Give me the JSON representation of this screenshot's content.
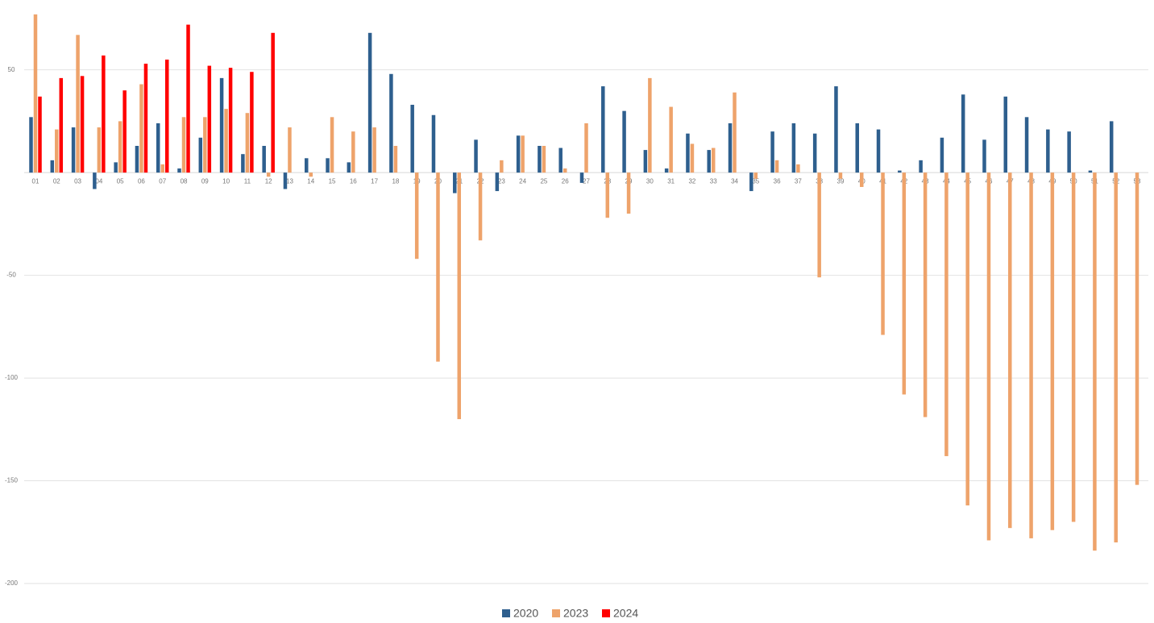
{
  "chart_data": {
    "type": "bar",
    "categories": [
      "01",
      "02",
      "03",
      "04",
      "05",
      "06",
      "07",
      "08",
      "09",
      "10",
      "11",
      "12",
      "13",
      "14",
      "15",
      "16",
      "17",
      "18",
      "19",
      "20",
      "21",
      "22",
      "23",
      "24",
      "25",
      "26",
      "27",
      "28",
      "29",
      "30",
      "31",
      "32",
      "33",
      "34",
      "35",
      "36",
      "37",
      "38",
      "39",
      "40",
      "41",
      "42",
      "43",
      "44",
      "45",
      "46",
      "47",
      "48",
      "49",
      "50",
      "51",
      "52",
      "53"
    ],
    "series": [
      {
        "name": "2020",
        "color": "#2e5f8e",
        "values": [
          27,
          6,
          22,
          -8,
          5,
          13,
          24,
          2,
          17,
          46,
          9,
          13,
          -8,
          7,
          7,
          5,
          68,
          48,
          33,
          28,
          -10,
          16,
          -9,
          18,
          13,
          12,
          -5,
          42,
          30,
          11,
          2,
          19,
          11,
          24,
          -9,
          20,
          24,
          19,
          42,
          24,
          21,
          1,
          6,
          17,
          38,
          16,
          37,
          27,
          21,
          20,
          1,
          25,
          null
        ]
      },
      {
        "name": "2023",
        "color": "#eea36b",
        "values": [
          77,
          21,
          67,
          22,
          25,
          43,
          4,
          27,
          27,
          31,
          29,
          -2,
          22,
          -2,
          27,
          20,
          22,
          13,
          -42,
          -92,
          -120,
          -33,
          6,
          18,
          13,
          2,
          24,
          -22,
          -20,
          46,
          32,
          14,
          12,
          39,
          -3,
          6,
          4,
          -51,
          -3,
          -7,
          -79,
          -108,
          -119,
          -138,
          -162,
          -179,
          -173,
          -178,
          -174,
          -170,
          -184,
          -180,
          -152
        ]
      },
      {
        "name": "2024",
        "color": "#ff0000",
        "values": [
          37,
          46,
          47,
          57,
          40,
          53,
          55,
          72,
          52,
          51,
          49,
          68,
          null,
          null,
          null,
          null,
          null,
          null,
          null,
          null,
          null,
          null,
          null,
          null,
          null,
          null,
          null,
          null,
          null,
          null,
          null,
          null,
          null,
          null,
          null,
          null,
          null,
          null,
          null,
          null,
          null,
          null,
          null,
          null,
          null,
          null,
          null,
          null,
          null,
          null,
          null,
          null,
          null
        ]
      }
    ],
    "ylim": [
      -200,
      84
    ],
    "yticks": [
      -200,
      -150,
      -100,
      -50,
      50
    ],
    "grid": true,
    "legend": "bottom"
  }
}
